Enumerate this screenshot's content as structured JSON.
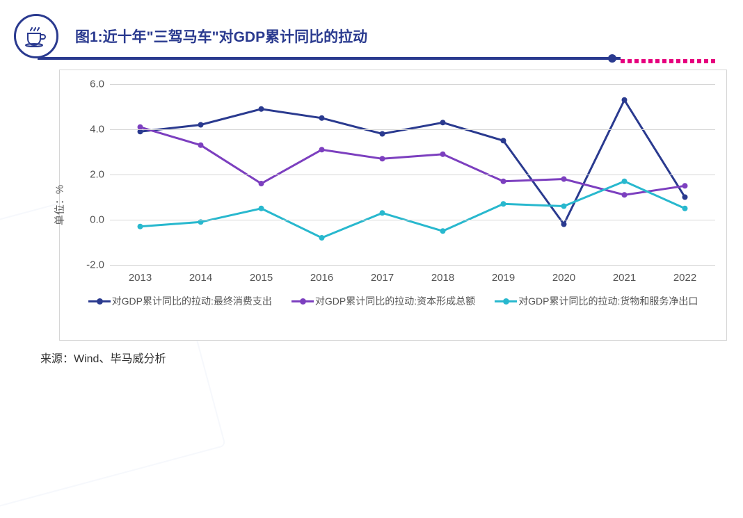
{
  "header": {
    "title": "图1:近十年\"三驾马车\"对GDP累计同比的拉动",
    "icon_name": "coffee-cup-icon"
  },
  "chart": {
    "type": "line",
    "ylabel": "单位：%",
    "ylim": [
      -2.0,
      6.0
    ],
    "ytick_step": 2.0,
    "yticks": [
      -2.0,
      0.0,
      2.0,
      4.0,
      6.0
    ],
    "ytick_labels": [
      "-2.0",
      "0.0",
      "2.0",
      "4.0",
      "6.0"
    ],
    "categories": [
      "2013",
      "2014",
      "2015",
      "2016",
      "2017",
      "2018",
      "2019",
      "2020",
      "2021",
      "2022"
    ],
    "grid_color": "#d6d6d6",
    "background_color": "#ffffff",
    "border_color": "#d6d6d6",
    "label_fontsize": 15,
    "tick_fontsize": 15,
    "line_width": 3,
    "marker_size": 8,
    "marker_style": "circle",
    "series": [
      {
        "name": "对GDP累计同比的拉动:最终消费支出",
        "color": "#2a3a8f",
        "values": [
          3.9,
          4.2,
          4.9,
          4.5,
          3.8,
          4.3,
          3.5,
          -0.2,
          5.3,
          1.0
        ]
      },
      {
        "name": "对GDP累计同比的拉动:资本形成总额",
        "color": "#7c3fbf",
        "values": [
          4.1,
          3.3,
          1.6,
          3.1,
          2.7,
          2.9,
          1.7,
          1.8,
          1.1,
          1.5
        ]
      },
      {
        "name": "对GDP累计同比的拉动:货物和服务净出口",
        "color": "#28b8ce",
        "values": [
          -0.3,
          -0.1,
          0.5,
          -0.8,
          0.3,
          -0.5,
          0.7,
          0.6,
          1.7,
          0.5
        ]
      }
    ]
  },
  "decoration": {
    "rule_color": "#2a3a8f",
    "dash_color": "#e6007e",
    "dash_count": 14
  },
  "source": "来源：Wind、毕马威分析"
}
